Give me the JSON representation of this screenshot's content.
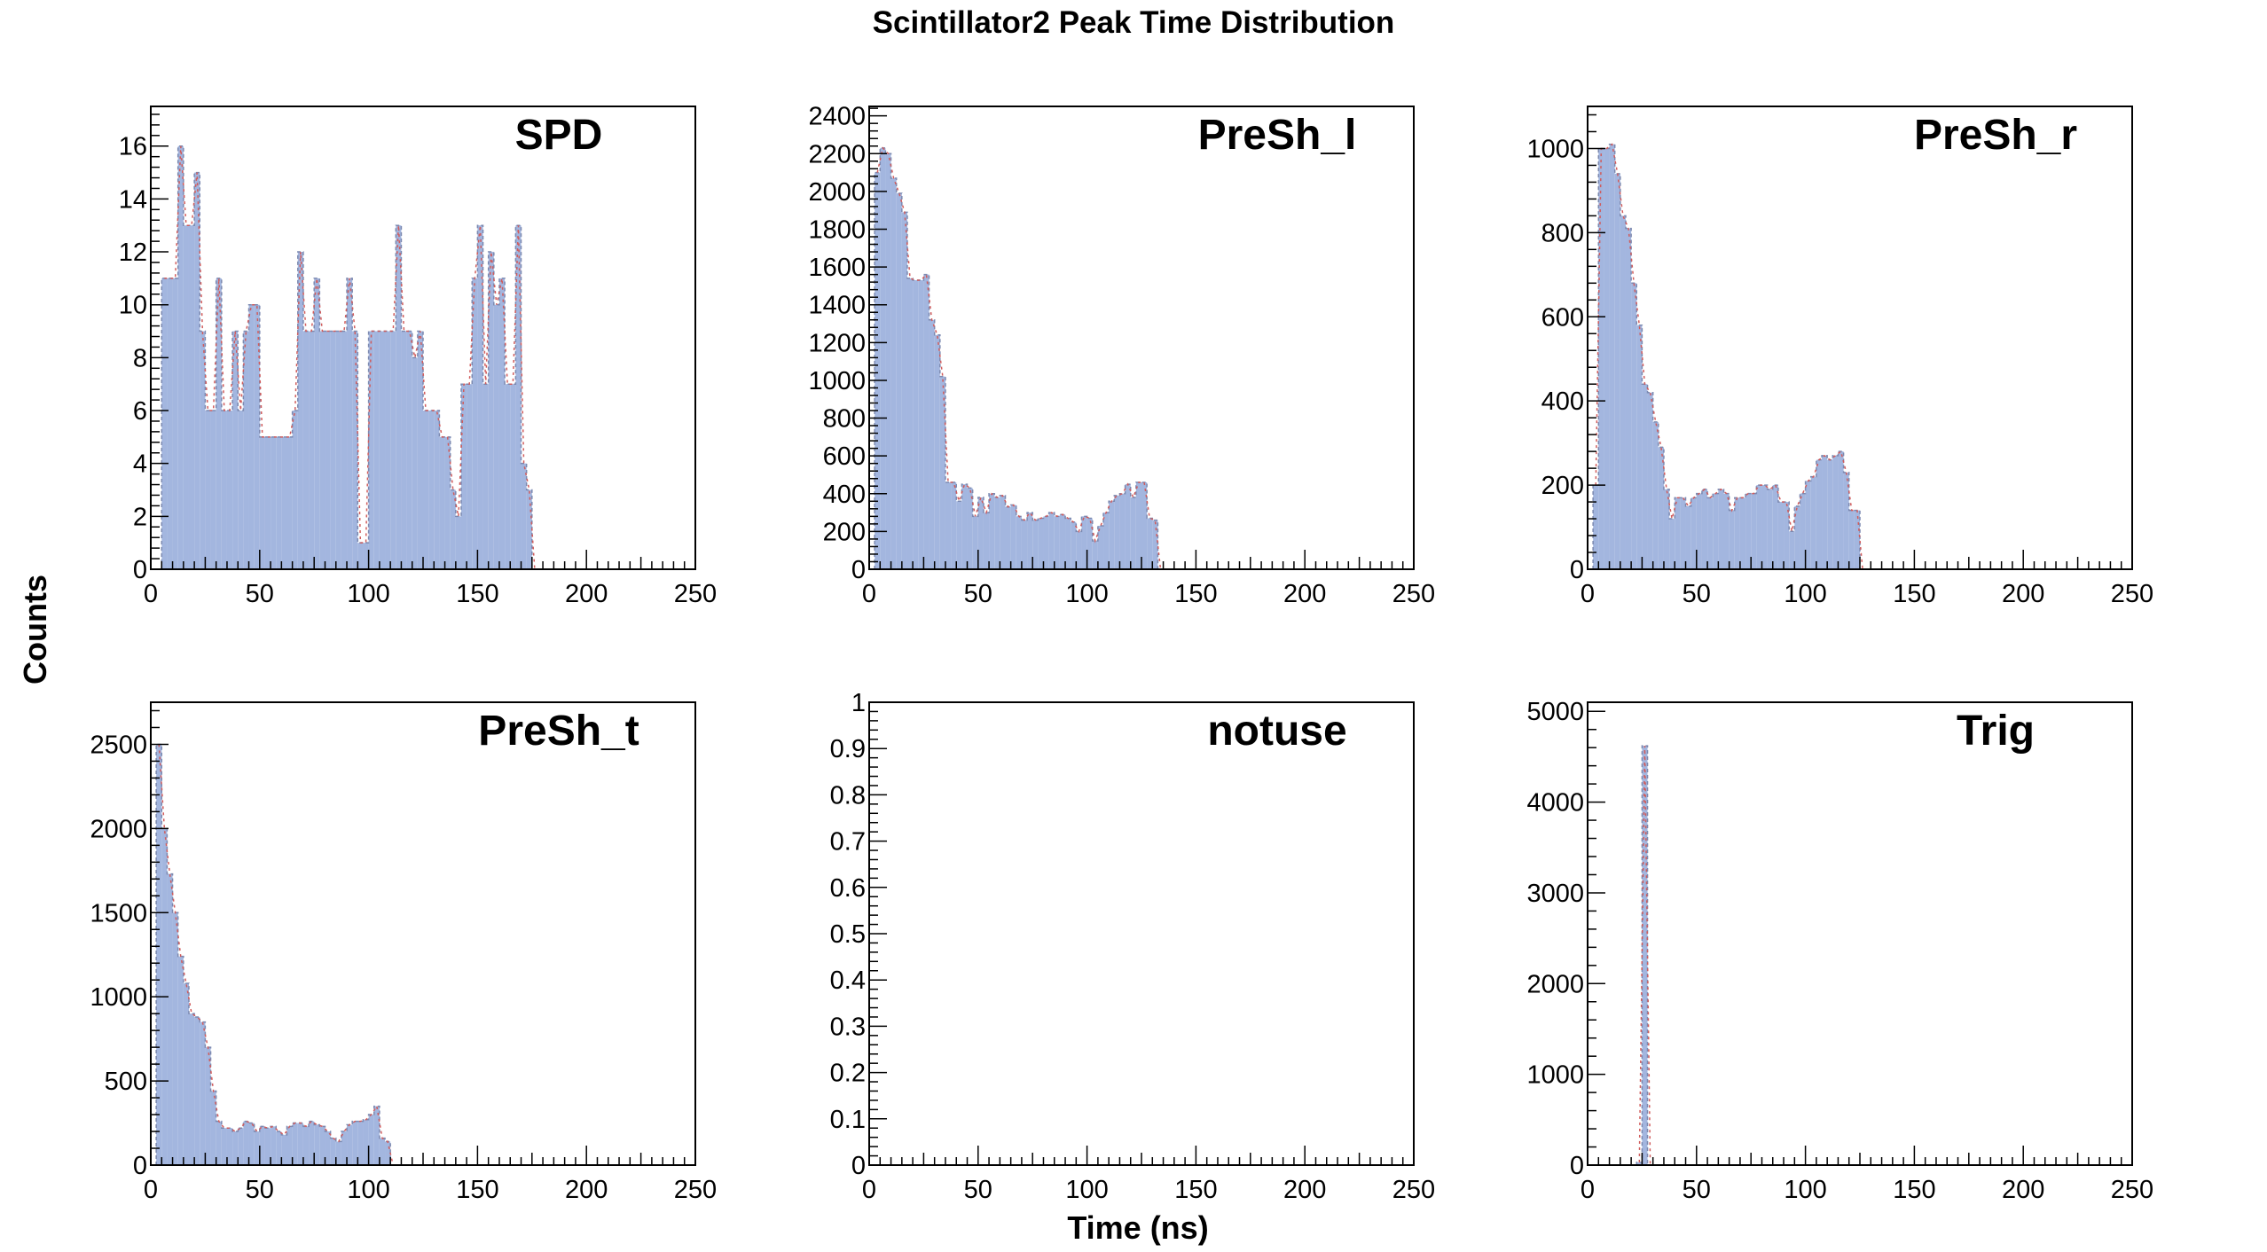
{
  "title": "Scintillator2 Peak Time Distribution",
  "ylabel": "Counts",
  "xlabel": "Time (ns)",
  "colors": {
    "fill": "#a3b6df",
    "outline": "#7c89b0",
    "fit": "#d05c5c",
    "axis": "#000000"
  },
  "chart_data": [
    {
      "type": "bar",
      "title": "SPD",
      "xlim": [
        0,
        250
      ],
      "ylim": [
        0,
        17.5
      ],
      "yticks": [
        0,
        2,
        4,
        6,
        8,
        10,
        12,
        14,
        16
      ],
      "xticks": [
        0,
        50,
        100,
        150,
        200,
        250
      ],
      "xtick_labels": [
        "0",
        "50",
        "100",
        "150",
        "200",
        "250"
      ],
      "bin_start": 5,
      "bin_width": 2.5,
      "values": [
        11,
        11,
        11,
        16,
        13,
        13,
        15,
        9,
        6,
        6,
        11,
        6,
        6,
        9,
        6,
        9,
        10,
        10,
        5,
        5,
        5,
        5,
        5,
        5,
        6,
        12,
        9,
        9,
        11,
        9,
        9,
        9,
        9,
        9,
        11,
        9,
        1,
        1,
        9,
        9,
        9,
        9,
        9,
        13,
        9,
        9,
        8,
        9,
        6,
        6,
        6,
        5,
        5,
        3,
        2,
        7,
        7,
        11,
        13,
        7,
        12,
        10,
        11,
        7,
        7,
        13,
        4,
        3,
        0
      ]
    },
    {
      "type": "bar",
      "title": "PreSh_l",
      "xlim": [
        0,
        250
      ],
      "ylim": [
        0,
        2450
      ],
      "yticks": [
        0,
        200,
        400,
        600,
        800,
        1000,
        1200,
        1400,
        1600,
        1800,
        2000,
        2200,
        2400
      ],
      "xticks": [
        0,
        50,
        100,
        150,
        200,
        250
      ],
      "xtick_labels": [
        "0",
        "50",
        "100",
        "150",
        "200",
        "250"
      ],
      "bin_start": 2.5,
      "bin_width": 2.5,
      "values": [
        2100,
        2230,
        2200,
        2070,
        1990,
        1890,
        1540,
        1530,
        1530,
        1560,
        1320,
        1240,
        1020,
        460,
        460,
        360,
        450,
        430,
        280,
        380,
        300,
        400,
        380,
        390,
        330,
        340,
        280,
        260,
        300,
        260,
        270,
        280,
        300,
        280,
        290,
        270,
        250,
        200,
        280,
        270,
        150,
        230,
        300,
        360,
        390,
        400,
        450,
        380,
        460,
        460,
        270,
        260,
        0
      ]
    },
    {
      "type": "bar",
      "title": "PreSh_r",
      "xlim": [
        0,
        250
      ],
      "ylim": [
        0,
        1100
      ],
      "yticks": [
        0,
        200,
        400,
        600,
        800,
        1000
      ],
      "xticks": [
        0,
        50,
        100,
        150,
        200,
        250
      ],
      "xtick_labels": [
        "0",
        "50",
        "100",
        "150",
        "200",
        "250"
      ],
      "bin_start": 2.5,
      "bin_width": 2.5,
      "values": [
        200,
        1000,
        1000,
        1010,
        940,
        840,
        810,
        680,
        580,
        440,
        420,
        350,
        290,
        190,
        120,
        170,
        170,
        150,
        170,
        180,
        190,
        170,
        180,
        190,
        180,
        140,
        170,
        170,
        180,
        180,
        200,
        200,
        190,
        200,
        160,
        160,
        90,
        150,
        180,
        210,
        220,
        260,
        270,
        260,
        270,
        280,
        230,
        140,
        140,
        0
      ]
    },
    {
      "type": "bar",
      "title": "PreSh_t",
      "xlim": [
        0,
        250
      ],
      "ylim": [
        0,
        2750
      ],
      "yticks": [
        0,
        500,
        1000,
        1500,
        2000,
        2500
      ],
      "xticks": [
        0,
        50,
        100,
        150,
        200,
        250
      ],
      "xtick_labels": [
        "0",
        "50",
        "100",
        "150",
        "200",
        "250"
      ],
      "bin_start": 2.5,
      "bin_width": 2.5,
      "values": [
        2500,
        2000,
        1730,
        1500,
        1240,
        1080,
        900,
        880,
        850,
        700,
        440,
        260,
        220,
        220,
        200,
        220,
        260,
        250,
        200,
        230,
        220,
        230,
        200,
        180,
        230,
        250,
        250,
        230,
        260,
        240,
        230,
        200,
        160,
        140,
        200,
        240,
        260,
        260,
        270,
        300,
        350,
        160,
        140,
        0
      ]
    },
    {
      "type": "bar",
      "title": "notuse",
      "xlim": [
        0,
        250
      ],
      "ylim": [
        0,
        1
      ],
      "yticks": [
        0,
        0.1,
        0.2,
        0.3,
        0.4,
        0.5,
        0.6,
        0.7,
        0.8,
        0.9,
        1
      ],
      "ytick_labels": [
        "0",
        "0.1",
        "0.2",
        "0.3",
        "0.4",
        "0.5",
        "0.6",
        "0.7",
        "0.8",
        "0.9",
        "1"
      ],
      "xticks": [
        0,
        50,
        100,
        150,
        200,
        250
      ],
      "xtick_labels": [
        "0",
        "50",
        "100",
        "150",
        "200",
        "250"
      ],
      "bin_start": 0,
      "bin_width": 2.5,
      "values": []
    },
    {
      "type": "bar",
      "title": "Trig",
      "xlim": [
        0,
        250
      ],
      "ylim": [
        0,
        5100
      ],
      "yticks": [
        0,
        1000,
        2000,
        3000,
        4000,
        5000
      ],
      "xticks": [
        0,
        50,
        100,
        150,
        200,
        250
      ],
      "xtick_labels": [
        "0",
        "50",
        "100",
        "150",
        "200",
        "250"
      ],
      "bin_start": 22.5,
      "bin_width": 2.5,
      "values": [
        30,
        4620,
        0
      ]
    }
  ]
}
